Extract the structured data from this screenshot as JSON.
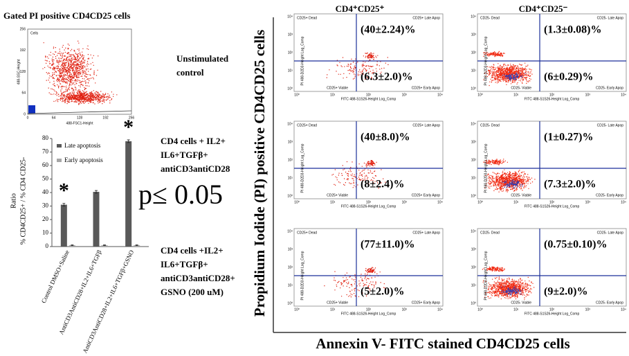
{
  "figure_title": "Gated PI positive CD4CD25 cells",
  "gate_plot": {
    "label": "Cells",
    "x_label": "488-FSC1-Height",
    "y_label": "488-SSC-Height",
    "ticks": [
      "0",
      "64",
      "128",
      "192",
      "256"
    ]
  },
  "conditions": [
    [
      "Unstimulated",
      "control"
    ],
    [
      "CD4 cells + IL2+",
      "IL6+TGFβ+",
      "antiCD3antiCD28"
    ],
    [
      "CD4 cells +IL2+",
      "IL6+TGFβ+",
      "antiCD3antiCD28+",
      "GSNO (200 uM)"
    ]
  ],
  "chart_data": {
    "type": "bar",
    "y_label": [
      "Ratio",
      "% CD4CD25+ / % CD4 CD25-"
    ],
    "categories": [
      "Control DMSO+Saline",
      "AntiCD3AntiCD28+IL2+IL6+TGFβ",
      "AntiCD3AntiCD28+IL2+IL6+TGFβ+GSNO"
    ],
    "series": [
      {
        "name": "Late apoptosis",
        "color": "#595959",
        "values": [
          31,
          40.5,
          78
        ],
        "errors": [
          1,
          1,
          1
        ]
      },
      {
        "name": "Early apoptosis",
        "color": "#a6a6a6",
        "values": [
          1,
          1,
          1
        ],
        "errors": [
          0.3,
          0.3,
          0.3
        ]
      }
    ],
    "stars": [
      "*",
      null,
      "*"
    ],
    "p_value": "p≤ 0.05",
    "ylim": [
      0,
      80
    ],
    "yticks": [
      0,
      10,
      20,
      30,
      40,
      50,
      60,
      70,
      80
    ]
  },
  "flow": {
    "y_title": "Propidium Iodide (PI) positive CD4CD25 cells",
    "x_title": "Annexin V- FITC stained CD4CD25 cells",
    "x_axis": "FITC 488-S1S26-Height Log_Comp",
    "y_axis": "PI 488-D2D3-Height Log_Comp",
    "ticks": [
      "10⁰",
      "10¹",
      "10²",
      "10³",
      "10⁴"
    ],
    "columns": [
      {
        "header": "CD4⁺CD25⁺",
        "dead": "CD25+ Dead",
        "late": "CD25+ Late Apop",
        "viable": "CD25+ Viable",
        "early": "CD25+ Early Apop"
      },
      {
        "header": "CD4⁺CD25⁻",
        "dead": "CD25- Dead",
        "late": "CD25- Late Apop",
        "viable": "CD25- Viable",
        "early": "CD25- Early Apop"
      }
    ],
    "rows": [
      [
        {
          "upper": "(40±2.24)%",
          "lower": "(6.3±2.0)%"
        },
        {
          "upper": "(1.3±0.08)%",
          "lower": "(6±0.29)%"
        }
      ],
      [
        {
          "upper": "(40±8.0)%",
          "lower": "(8±2.4)%"
        },
        {
          "upper": "(1±0.27)%",
          "lower": "(7.3±2.0)%"
        }
      ],
      [
        {
          "upper": "(77±11.0)%",
          "lower": "(5±2.0)%"
        },
        {
          "upper": "(0.75±0.10)%",
          "lower": "(9±2.0)%"
        }
      ]
    ]
  }
}
